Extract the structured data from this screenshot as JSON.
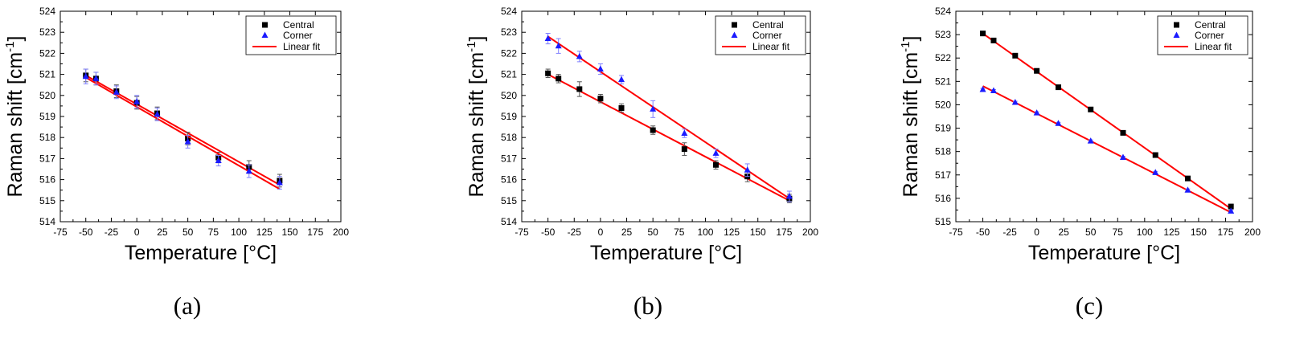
{
  "chart_data": [
    {
      "type": "scatter",
      "panel_label": "(a)",
      "xlabel": "Temperature [°C]",
      "ylabel": "Raman shift [cm",
      "ylabel_sup": "-1",
      "ylabel_close": "]",
      "xlim": [
        -75,
        200
      ],
      "ylim": [
        514,
        524
      ],
      "xticks": [
        -75,
        -50,
        -25,
        0,
        25,
        50,
        75,
        100,
        125,
        150,
        175,
        200
      ],
      "yticks": [
        514,
        515,
        516,
        517,
        518,
        519,
        520,
        521,
        522,
        523,
        524
      ],
      "legend": [
        "Central",
        "Corner",
        "Linear fit"
      ],
      "legend_position": "top-right",
      "series": [
        {
          "name": "Central",
          "marker": "square",
          "color": "#000000",
          "x": [
            -50,
            -40,
            -20,
            0,
            20,
            50,
            80,
            110,
            140
          ],
          "y": [
            520.95,
            520.8,
            520.2,
            519.65,
            519.15,
            517.95,
            517.05,
            516.6,
            515.95
          ],
          "err": [
            0.3,
            0.3,
            0.3,
            0.3,
            0.3,
            0.3,
            0.25,
            0.3,
            0.3
          ],
          "fit": [
            [
              -50,
              520.95
            ],
            [
              140,
              515.75
            ]
          ]
        },
        {
          "name": "Corner",
          "marker": "triangle",
          "color": "#1a1aff",
          "x": [
            -50,
            -40,
            -20,
            0,
            20,
            50,
            80,
            110,
            140
          ],
          "y": [
            520.9,
            520.8,
            520.15,
            519.7,
            519.1,
            517.8,
            516.9,
            516.4,
            515.85
          ],
          "err": [
            0.35,
            0.3,
            0.3,
            0.3,
            0.3,
            0.3,
            0.25,
            0.3,
            0.3
          ],
          "fit": [
            [
              -50,
              520.85
            ],
            [
              140,
              515.55
            ]
          ]
        }
      ]
    },
    {
      "type": "scatter",
      "panel_label": "(b)",
      "xlabel": "Temperature [°C]",
      "ylabel": "Raman shift [cm",
      "ylabel_sup": "-1",
      "ylabel_close": "]",
      "xlim": [
        -75,
        200
      ],
      "ylim": [
        514,
        524
      ],
      "xticks": [
        -75,
        -50,
        -25,
        0,
        25,
        50,
        75,
        100,
        125,
        150,
        175,
        200
      ],
      "yticks": [
        514,
        515,
        516,
        517,
        518,
        519,
        520,
        521,
        522,
        523,
        524
      ],
      "legend": [
        "Central",
        "Corner",
        "Linear fit"
      ],
      "legend_position": "top-right",
      "series": [
        {
          "name": "Central",
          "marker": "square",
          "color": "#000000",
          "x": [
            -50,
            -40,
            -20,
            0,
            20,
            50,
            80,
            110,
            140,
            180
          ],
          "y": [
            521.05,
            520.8,
            520.3,
            519.85,
            519.4,
            518.35,
            517.45,
            516.7,
            516.15,
            515.1
          ],
          "err": [
            0.2,
            0.2,
            0.35,
            0.2,
            0.2,
            0.2,
            0.3,
            0.2,
            0.25,
            0.2
          ],
          "fit": [
            [
              -50,
              521.0
            ],
            [
              180,
              515.0
            ]
          ]
        },
        {
          "name": "Corner",
          "marker": "triangle",
          "color": "#1a1aff",
          "x": [
            -50,
            -40,
            -20,
            0,
            20,
            50,
            80,
            110,
            140,
            180
          ],
          "y": [
            522.7,
            522.35,
            521.85,
            521.25,
            520.75,
            519.35,
            518.2,
            517.25,
            516.45,
            515.2
          ],
          "err": [
            0.25,
            0.35,
            0.25,
            0.25,
            0.2,
            0.4,
            0.2,
            0.2,
            0.3,
            0.25
          ],
          "fit": [
            [
              -50,
              522.8
            ],
            [
              180,
              515.1
            ]
          ]
        }
      ]
    },
    {
      "type": "scatter",
      "panel_label": "(c)",
      "xlabel": "Temperature [°C]",
      "ylabel": "Raman shift [cm",
      "ylabel_sup": "-1",
      "ylabel_close": "]",
      "xlim": [
        -75,
        200
      ],
      "ylim": [
        515,
        524
      ],
      "xticks": [
        -75,
        -50,
        -25,
        0,
        25,
        50,
        75,
        100,
        125,
        150,
        175,
        200
      ],
      "yticks": [
        515,
        516,
        517,
        518,
        519,
        520,
        521,
        522,
        523,
        524
      ],
      "legend": [
        "Central",
        "Corner",
        "Linear fit"
      ],
      "legend_position": "top-right",
      "series": [
        {
          "name": "Central",
          "marker": "square",
          "color": "#000000",
          "x": [
            -50,
            -40,
            -20,
            0,
            20,
            50,
            80,
            110,
            140,
            180
          ],
          "y": [
            523.05,
            522.75,
            522.1,
            521.45,
            520.75,
            519.8,
            518.8,
            517.85,
            516.85,
            515.65
          ],
          "err": [
            0.05,
            0.05,
            0.05,
            0.05,
            0.05,
            0.05,
            0.05,
            0.05,
            0.05,
            0.05
          ],
          "fit": [
            [
              -50,
              523.05
            ],
            [
              180,
              515.55
            ]
          ]
        },
        {
          "name": "Corner",
          "marker": "triangle",
          "color": "#1a1aff",
          "x": [
            -50,
            -40,
            -20,
            0,
            20,
            50,
            80,
            110,
            140,
            180
          ],
          "y": [
            520.65,
            520.6,
            520.1,
            519.65,
            519.2,
            518.45,
            517.75,
            517.1,
            516.35,
            515.45
          ],
          "err": [
            0.05,
            0.05,
            0.05,
            0.05,
            0.05,
            0.05,
            0.05,
            0.05,
            0.05,
            0.05
          ],
          "fit": [
            [
              -50,
              520.8
            ],
            [
              180,
              515.4
            ]
          ]
        }
      ]
    }
  ]
}
